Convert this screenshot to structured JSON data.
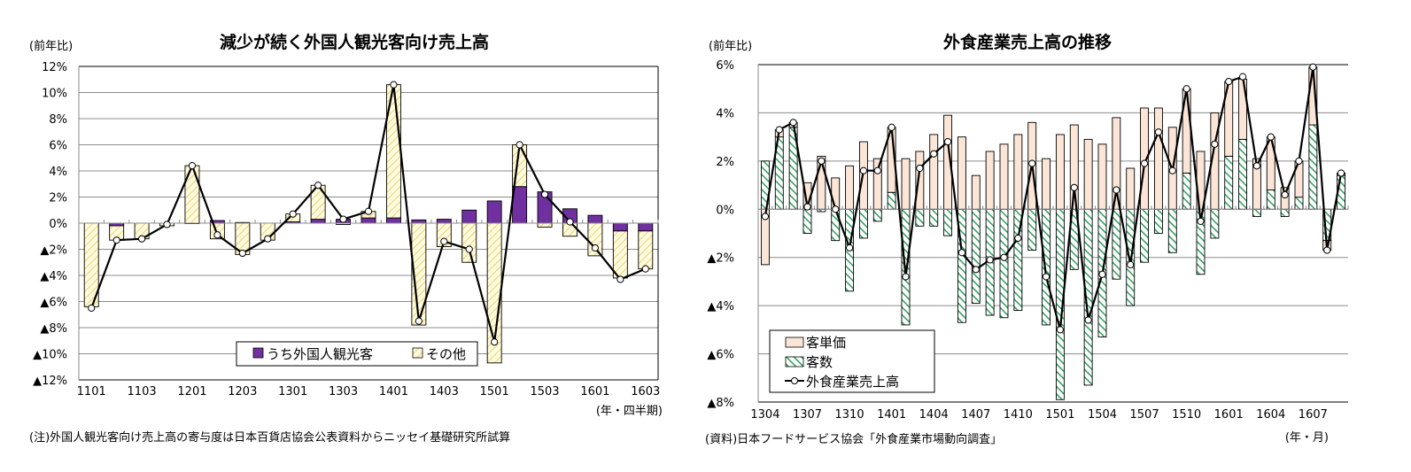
{
  "chart_data": [
    {
      "type": "bar",
      "stacked": true,
      "title": "減少が続く外国人観光客向け売上高",
      "ylabel": "(前年比)",
      "xlabel": "(年・四半期)",
      "note": "(注)外国人観光客向け売上高の寄与度は日本百貨店協会公表資料からニッセイ基礎研究所試算",
      "ylim": [
        -12,
        12
      ],
      "yticks": [
        12,
        10,
        8,
        6,
        4,
        2,
        0,
        -2,
        -4,
        -6,
        -8,
        -10,
        -12
      ],
      "ytick_labels": [
        "12%",
        "10%",
        "8%",
        "6%",
        "4%",
        "2%",
        "0%",
        "▲2%",
        "▲4%",
        "▲6%",
        "▲8%",
        "▲10%",
        "▲12%"
      ],
      "grid": true,
      "legend_position": "bottom-center",
      "categories": [
        "1101",
        "1102",
        "1103",
        "1104",
        "1201",
        "1202",
        "1203",
        "1204",
        "1301",
        "1302",
        "1303",
        "1304",
        "1401",
        "1402",
        "1403",
        "1404",
        "1501",
        "1502",
        "1503",
        "1504",
        "1601",
        "1602",
        "1603"
      ],
      "xtick_labels": [
        "1101",
        "",
        "1103",
        "",
        "1201",
        "",
        "1203",
        "",
        "1301",
        "",
        "1303",
        "",
        "1401",
        "",
        "1403",
        "",
        "1501",
        "",
        "1503",
        "",
        "1601",
        "",
        "1603"
      ],
      "series": [
        {
          "name": "うち外国人観光客",
          "kind": "bar",
          "color": "#7030a0",
          "values": [
            0,
            -0.2,
            0,
            0,
            0,
            0.2,
            0.05,
            0,
            0.1,
            0.3,
            0.3,
            0.4,
            0.4,
            0.25,
            0.3,
            1.0,
            1.7,
            2.8,
            2.4,
            1.1,
            0.6,
            -0.6,
            -0.6
          ]
        },
        {
          "name": "その他",
          "kind": "bar",
          "color": "#fffbe0",
          "hatch": "#e6c84a",
          "values": [
            -6.4,
            -1.1,
            -1.2,
            -0.2,
            4.4,
            -1.2,
            -2.4,
            -1.3,
            0.6,
            2.6,
            -0.1,
            0.5,
            10.2,
            -7.8,
            -1.8,
            -3.0,
            -10.7,
            3.2,
            -0.3,
            -1.0,
            -2.5,
            -3.6,
            -2.9
          ]
        },
        {
          "name": "",
          "kind": "line",
          "color": "#000000",
          "values": [
            -6.5,
            -1.3,
            -1.2,
            -0.1,
            4.4,
            -0.9,
            -2.3,
            -1.2,
            0.7,
            2.9,
            0.3,
            0.9,
            10.6,
            -7.5,
            -1.4,
            -2.0,
            -9.1,
            6.0,
            2.2,
            0.1,
            -1.9,
            -4.3,
            -3.5
          ]
        }
      ]
    },
    {
      "type": "bar",
      "stacked": true,
      "title": "外食産業売上高の推移",
      "ylabel": "(前年比)",
      "xlabel": "(年・月)",
      "note": "(資料)日本フードサービス協会「外食産業市場動向調査」",
      "ylim": [
        -8,
        6
      ],
      "yticks": [
        6,
        4,
        2,
        0,
        -2,
        -4,
        -6,
        -8
      ],
      "ytick_labels": [
        "6%",
        "4%",
        "2%",
        "0%",
        "▲2%",
        "▲4%",
        "▲6%",
        "▲8%"
      ],
      "grid": true,
      "legend_position": "bottom-left",
      "categories": [
        "1304",
        "1305",
        "1306",
        "1307",
        "1308",
        "1309",
        "1310",
        "1311",
        "1312",
        "1401",
        "1402",
        "1403",
        "1404",
        "1405",
        "1406",
        "1407",
        "1408",
        "1409",
        "1410",
        "1411",
        "1412",
        "1501",
        "1502",
        "1503",
        "1504",
        "1505",
        "1506",
        "1507",
        "1508",
        "1509",
        "1510",
        "1511",
        "1512",
        "1601",
        "1602",
        "1603",
        "1604",
        "1605",
        "1606",
        "1607",
        "1608",
        "1609"
      ],
      "xtick_labels": [
        "1304",
        "",
        "",
        "1307",
        "",
        "",
        "1310",
        "",
        "",
        "1401",
        "",
        "",
        "1404",
        "",
        "",
        "1407",
        "",
        "",
        "1410",
        "",
        "",
        "1501",
        "",
        "",
        "1504",
        "",
        "",
        "1507",
        "",
        "",
        "1510",
        "",
        "",
        "1601",
        "",
        "",
        "1604",
        "",
        "",
        "1607",
        "",
        ""
      ],
      "series": [
        {
          "name": "客数",
          "kind": "bar",
          "color": "#ffffff",
          "hatch": "#2e9e5e",
          "values": [
            2.0,
            3.0,
            3.4,
            -1.0,
            -0.1,
            -1.3,
            -3.4,
            -1.2,
            -0.5,
            0.7,
            -4.8,
            -0.7,
            -0.7,
            -1.1,
            -4.7,
            -3.9,
            -4.4,
            -4.5,
            -4.2,
            -1.7,
            -4.8,
            -7.9,
            -2.5,
            -7.3,
            -5.3,
            -2.9,
            -4.0,
            -2.2,
            -1.0,
            -1.8,
            1.5,
            -2.7,
            -1.2,
            2.2,
            2.9,
            -0.3,
            0.8,
            -0.3,
            0.5,
            3.5,
            -1.3,
            1.4
          ]
        },
        {
          "name": "客単価",
          "kind": "bar",
          "color": "#fbe5d6",
          "values": [
            -2.3,
            0.3,
            0.2,
            1.1,
            2.2,
            1.3,
            1.8,
            2.8,
            2.1,
            2.7,
            2.1,
            2.4,
            3.1,
            3.9,
            3.0,
            1.4,
            2.4,
            2.7,
            3.1,
            3.6,
            2.1,
            3.1,
            3.5,
            2.9,
            2.7,
            3.8,
            1.7,
            4.2,
            4.2,
            3.4,
            3.5,
            2.4,
            4.0,
            3.1,
            2.5,
            2.1,
            2.2,
            0.9,
            1.5,
            2.4,
            -0.4,
            0.1
          ]
        },
        {
          "name": "外食産業売上高",
          "kind": "line",
          "color": "#000000",
          "values": [
            -0.3,
            3.3,
            3.6,
            0.1,
            2.0,
            0.0,
            -1.6,
            1.6,
            1.6,
            3.4,
            -2.8,
            1.7,
            2.3,
            2.8,
            -1.8,
            -2.5,
            -2.1,
            -2.0,
            -1.2,
            1.9,
            -2.8,
            -5.0,
            0.9,
            -4.6,
            -2.7,
            0.8,
            -2.3,
            1.9,
            3.2,
            1.6,
            5.0,
            -0.5,
            2.7,
            5.3,
            5.5,
            1.8,
            3.0,
            0.6,
            2.0,
            5.9,
            -1.7,
            1.5
          ]
        }
      ]
    }
  ]
}
